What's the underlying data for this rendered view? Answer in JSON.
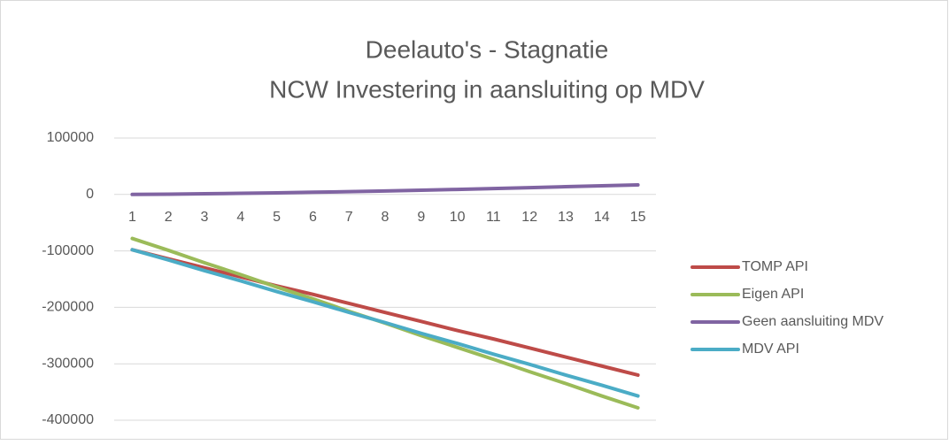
{
  "chart_data": {
    "type": "line",
    "title": "Deelauto's - Stagnatie",
    "subtitle": "NCW Investering in aansluiting op MDV",
    "categories": [
      "1",
      "2",
      "3",
      "4",
      "5",
      "6",
      "7",
      "8",
      "9",
      "10",
      "11",
      "12",
      "13",
      "14",
      "15"
    ],
    "series": [
      {
        "name": "TOMP API",
        "color": "#be4b48",
        "values": [
          -98000,
          -114000,
          -130000,
          -146000,
          -162000,
          -177000,
          -193000,
          -209000,
          -225000,
          -241000,
          -256000,
          -272000,
          -288000,
          -304000,
          -320000
        ]
      },
      {
        "name": "Eigen API",
        "color": "#9bbb59",
        "values": [
          -78000,
          -99000,
          -121000,
          -142000,
          -164000,
          -185000,
          -207000,
          -228000,
          -250000,
          -271000,
          -292000,
          -314000,
          -335000,
          -357000,
          -378000
        ]
      },
      {
        "name": "Geen aansluiting MDV",
        "color": "#8064a2",
        "values": [
          0,
          500,
          1200,
          2000,
          2900,
          3900,
          5000,
          6200,
          7500,
          8900,
          10400,
          12000,
          13700,
          15400,
          17000
        ]
      },
      {
        "name": "MDV API",
        "color": "#4bacc6",
        "values": [
          -98000,
          -116000,
          -135000,
          -153000,
          -172000,
          -190000,
          -209000,
          -227000,
          -246000,
          -264000,
          -283000,
          -301000,
          -320000,
          -338000,
          -357000
        ]
      }
    ],
    "ylim": [
      -400000,
      100000
    ],
    "yticks": [
      -400000,
      -300000,
      -200000,
      -100000,
      0,
      100000
    ],
    "grid": true,
    "legend": "right"
  }
}
